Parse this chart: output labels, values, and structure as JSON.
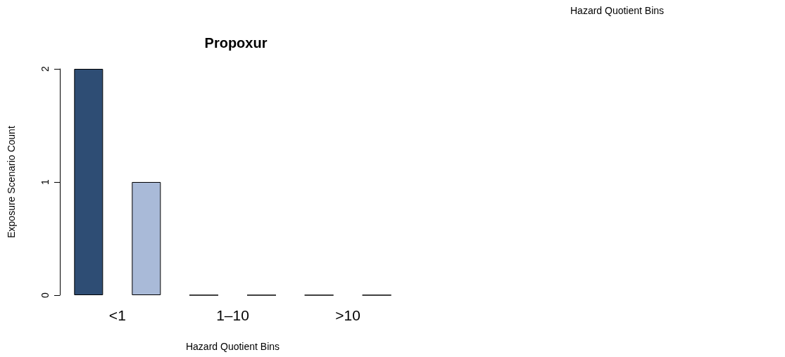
{
  "chart_data": {
    "type": "bar",
    "title": "Propoxur",
    "xlabel": "Hazard Quotient Bins",
    "ylabel": "Exposure Scenario Count",
    "categories": [
      "<1",
      "1–10",
      ">10"
    ],
    "series": [
      {
        "color": "#2e4d74",
        "values": [
          2,
          0,
          0
        ]
      },
      {
        "color": "#a9bad8",
        "values": [
          1,
          0,
          0
        ]
      }
    ],
    "ylim": [
      0,
      2
    ],
    "yticks": [
      0,
      1,
      2
    ],
    "grid": false,
    "annotations": [
      "Hazard Quotient Bins"
    ]
  }
}
